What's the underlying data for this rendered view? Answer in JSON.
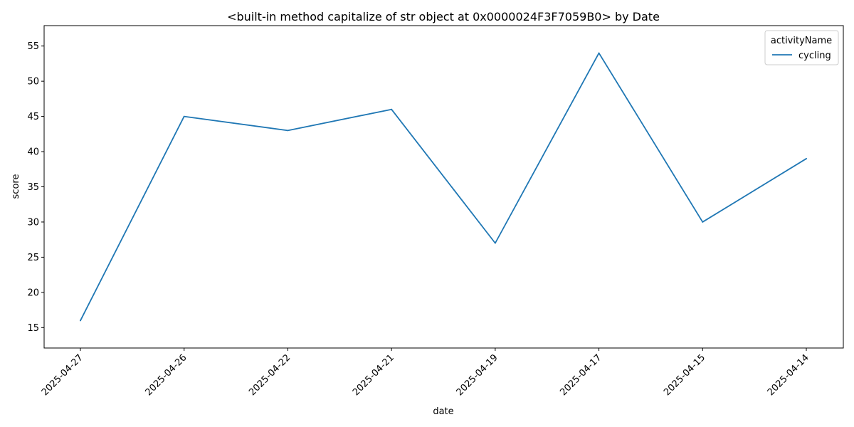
{
  "chart_data": {
    "type": "line",
    "title": "<built-in method capitalize of str object at 0x0000024F3F7059B0> by Date",
    "xlabel": "date",
    "ylabel": "score",
    "categories": [
      "2025-04-27",
      "2025-04-26",
      "2025-04-22",
      "2025-04-21",
      "2025-04-19",
      "2025-04-17",
      "2025-04-15",
      "2025-04-14"
    ],
    "series": [
      {
        "name": "cycling",
        "values": [
          16,
          45,
          43,
          46,
          27,
          54,
          30,
          39
        ],
        "color": "#1f77b4"
      }
    ],
    "yticks": [
      15,
      20,
      25,
      30,
      35,
      40,
      45,
      50,
      55
    ],
    "ylim": [
      12.1,
      57.9
    ],
    "grid": false,
    "legend": {
      "title": "activityName",
      "position": "top-right"
    }
  }
}
